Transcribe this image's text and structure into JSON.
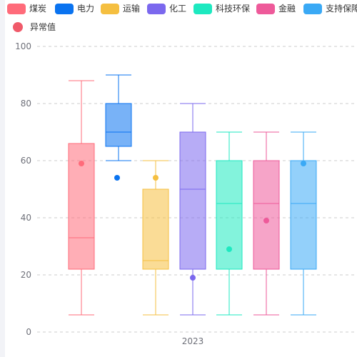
{
  "chart_data": {
    "type": "boxplot",
    "categories": [
      "2023"
    ],
    "y_ticks": [
      0,
      20,
      40,
      60,
      80,
      100
    ],
    "ylim": [
      0,
      100
    ],
    "grid": true,
    "legend_position": "top",
    "series": [
      {
        "name": "煤炭",
        "color": "#ff6b7a",
        "min": 6,
        "q1": 22,
        "median": 33,
        "q3": 66,
        "max": 88,
        "outliers": [
          59
        ]
      },
      {
        "name": "电力",
        "color": "#0a73f0",
        "min": 60,
        "q1": 65,
        "median": 70,
        "q3": 80,
        "max": 90,
        "outliers": [
          54
        ]
      },
      {
        "name": "运输",
        "color": "#f5bf40",
        "min": 6,
        "q1": 22,
        "median": 25,
        "q3": 50,
        "max": 60,
        "outliers": [
          54
        ]
      },
      {
        "name": "化工",
        "color": "#7b68ee",
        "min": 6,
        "q1": 22,
        "median": 50,
        "q3": 70,
        "max": 80,
        "outliers": [
          19
        ]
      },
      {
        "name": "科技环保",
        "color": "#1de9c0",
        "min": 6,
        "q1": 22,
        "median": 45,
        "q3": 60,
        "max": 70,
        "outliers": [
          29
        ]
      },
      {
        "name": "金融",
        "color": "#ee5a9a",
        "min": 6,
        "q1": 22,
        "median": 45,
        "q3": 60,
        "max": 70,
        "outliers": [
          39
        ]
      },
      {
        "name": "支持保障",
        "color": "#3aa9f5",
        "min": 6,
        "q1": 22,
        "median": 45,
        "q3": 60,
        "max": 70,
        "outliers": [
          59
        ]
      }
    ],
    "outlier_legend": {
      "name": "异常值",
      "color": "#f05a6a"
    }
  }
}
